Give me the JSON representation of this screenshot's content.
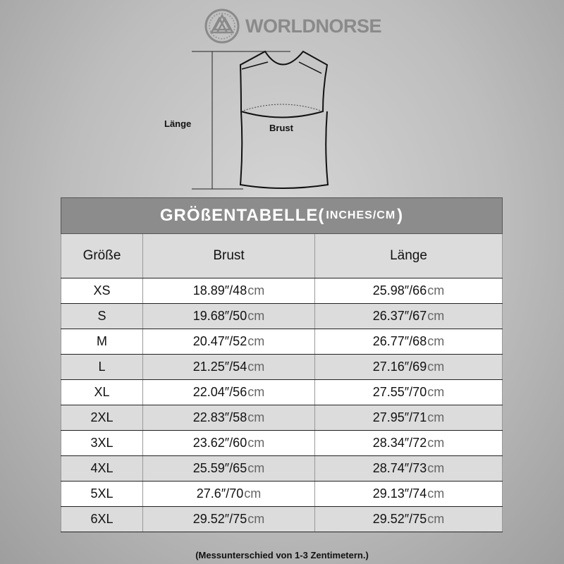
{
  "brand": {
    "name": "WORLDNORSE",
    "icon": "valknut-icon"
  },
  "diagram": {
    "length_label": "Länge",
    "chest_label": "Brust"
  },
  "table": {
    "title": "GRÖßENTABELLE(",
    "title_unit": "INCHES/CM",
    "title_close": ")",
    "headers": [
      "Größe",
      "Brust",
      "Länge"
    ],
    "rows": [
      {
        "size": "XS",
        "chest": "18.89″/48",
        "length": "25.98″/66"
      },
      {
        "size": "S",
        "chest": "19.68″/50",
        "length": "26.37″/67"
      },
      {
        "size": "M",
        "chest": "20.47″/52",
        "length": "26.77″/68"
      },
      {
        "size": "L",
        "chest": "21.25″/54",
        "length": "27.16″/69"
      },
      {
        "size": "XL",
        "chest": "22.04″/56",
        "length": "27.55″/70"
      },
      {
        "size": "2XL",
        "chest": "22.83″/58",
        "length": "27.95″/71"
      },
      {
        "size": "3XL",
        "chest": "23.62″/60",
        "length": "28.34″/72"
      },
      {
        "size": "4XL",
        "chest": "25.59″/65",
        "length": "28.74″/73"
      },
      {
        "size": "5XL",
        "chest": "27.6″/70",
        "length": "29.13″/74"
      },
      {
        "size": "6XL",
        "chest": "29.52″/75",
        "length": "29.52″/75"
      }
    ],
    "unit_suffix": "cm"
  },
  "note": "(Messunterschied von 1-3 Zentimetern.)"
}
